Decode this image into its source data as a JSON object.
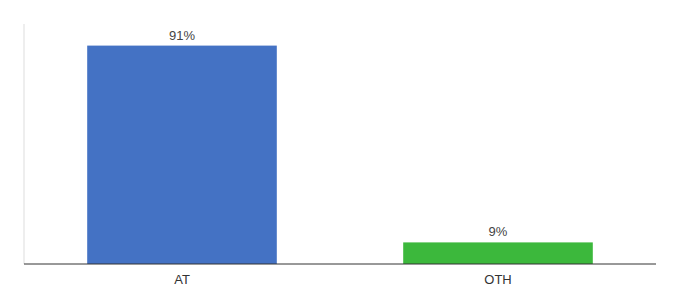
{
  "chart_data": {
    "type": "bar",
    "categories": [
      "AT",
      "OTH"
    ],
    "values": [
      91,
      9
    ],
    "value_labels": [
      "91%",
      "9%"
    ],
    "colors": [
      "#4472C4",
      "#3CB83C"
    ],
    "ylim": [
      0,
      100
    ],
    "data_labels": true,
    "tick_labels": "x"
  }
}
